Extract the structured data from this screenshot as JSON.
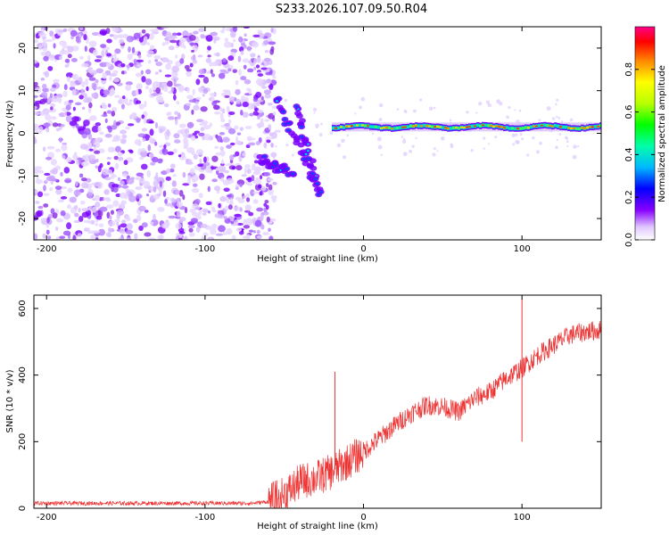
{
  "title": "S233.2026.107.09.50.R04",
  "chart_data": [
    {
      "type": "heatmap",
      "name": "spectrogram",
      "xlabel": "Height of straight line (km)",
      "ylabel": "Frequency (Hz)",
      "xlim": [
        -208,
        150
      ],
      "ylim": [
        -25,
        25
      ],
      "xticks": [
        -200,
        -100,
        0,
        100
      ],
      "yticks": [
        -20,
        -10,
        0,
        10,
        20
      ],
      "colorbar": {
        "label": "Normalized spectral amplitude",
        "ticks": [
          "0.0",
          "0.2",
          "0.4",
          "0.6",
          "0.8"
        ],
        "range": [
          0,
          1
        ]
      },
      "regions": [
        {
          "description": "noise",
          "x": [
            -208,
            -60
          ],
          "y": [
            -25,
            25
          ],
          "amplitude": 0.15
        },
        {
          "description": "chirp-1",
          "x": [
            -65,
            -45
          ],
          "y": [
            -6,
            -10
          ],
          "amplitude": 0.35
        },
        {
          "description": "chirp-2",
          "x": [
            -55,
            -30
          ],
          "y": [
            8,
            -12
          ],
          "amplitude": 0.3
        },
        {
          "description": "chirp-3",
          "x": [
            -42,
            -28
          ],
          "y": [
            6,
            -15
          ],
          "amplitude": 0.3
        },
        {
          "description": "carrier",
          "x": [
            -20,
            150
          ],
          "y": [
            1.5,
            1.5
          ],
          "amplitude": 0.85
        }
      ]
    },
    {
      "type": "line",
      "name": "snr",
      "xlabel": "Height of straight line (km)",
      "ylabel": "SNR (10 * v/v)",
      "xlim": [
        -208,
        150
      ],
      "ylim": [
        0,
        640
      ],
      "xticks": [
        -200,
        -100,
        0,
        100
      ],
      "yticks": [
        0,
        200,
        400,
        600
      ],
      "color": "#ee3333",
      "series": [
        {
          "name": "SNR",
          "x": [
            -208,
            -150,
            -100,
            -70,
            -60,
            -50,
            -40,
            -30,
            -20,
            -10,
            0,
            10,
            20,
            30,
            40,
            50,
            60,
            70,
            80,
            90,
            100,
            110,
            120,
            130,
            140,
            150
          ],
          "values": [
            15,
            15,
            15,
            15,
            20,
            40,
            80,
            90,
            110,
            140,
            170,
            210,
            250,
            285,
            310,
            305,
            290,
            330,
            350,
            390,
            420,
            460,
            490,
            520,
            530,
            535
          ]
        }
      ],
      "spikes": [
        {
          "x": -18,
          "value": 410
        },
        {
          "x": 100,
          "value": 630
        },
        {
          "x": 100,
          "value": 200
        }
      ]
    }
  ]
}
